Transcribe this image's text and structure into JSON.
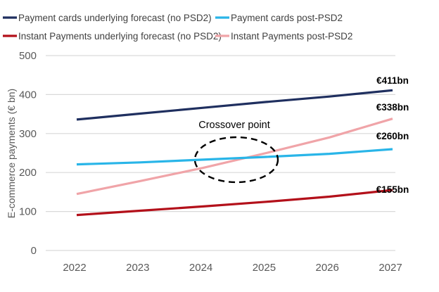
{
  "chart_data": {
    "type": "line",
    "title": "",
    "xlabel": "",
    "ylabel": "E-commerce payments (€ bn)",
    "ylim": [
      0,
      500
    ],
    "yticks": [
      0,
      100,
      200,
      300,
      400,
      500
    ],
    "grid": true,
    "legend_position": "top",
    "categories": [
      "2022",
      "2023",
      "2024",
      "2025",
      "2026",
      "2027"
    ],
    "series": [
      {
        "name": "Payment cards underlying forecast (no PSD2)",
        "color": "#1f2f5f",
        "values": [
          336,
          351,
          366,
          381,
          395,
          411
        ],
        "end_label": "€411bn"
      },
      {
        "name": "Payment cards post-PSD2",
        "color": "#29b5e8",
        "values": [
          221,
          226,
          233,
          240,
          248,
          260
        ],
        "end_label": "€260bn"
      },
      {
        "name": "Instant Payments underlying forecast (no PSD2)",
        "color": "#b3101a",
        "values": [
          91,
          102,
          113,
          125,
          138,
          155
        ],
        "end_label": "€155bn"
      },
      {
        "name": "Instant Payments post-PSD2",
        "color": "#f0a4a8",
        "values": [
          145,
          178,
          212,
          250,
          290,
          338
        ],
        "end_label": "€338bn"
      }
    ],
    "annotations": [
      {
        "text": "Crossover point",
        "shape": "dashed-ellipse",
        "x_category": "2024-2025",
        "y_value": 235
      }
    ]
  }
}
